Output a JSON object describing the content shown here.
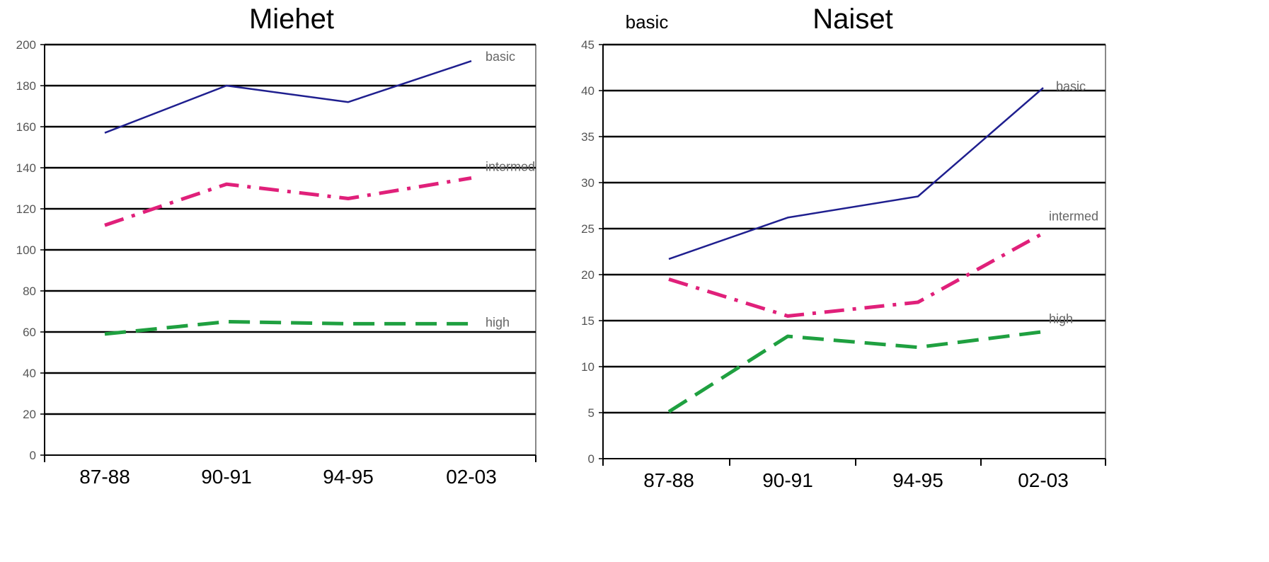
{
  "chart_data": [
    {
      "type": "line",
      "title": "Miehet",
      "note": "",
      "categories": [
        "87-88",
        "90-91",
        "94-95",
        "02-03"
      ],
      "ylim": [
        0,
        200
      ],
      "yticks": [
        0,
        20,
        40,
        60,
        80,
        100,
        120,
        140,
        160,
        180,
        200
      ],
      "grid": true,
      "series": [
        {
          "name": "basic",
          "values": [
            157,
            180,
            172,
            192
          ],
          "color": "#1f1f8f",
          "style": "solid"
        },
        {
          "name": "intermed",
          "values": [
            112,
            132,
            125,
            135
          ],
          "color": "#e0207a",
          "style": "dashdot"
        },
        {
          "name": "high",
          "values": [
            59,
            65,
            64,
            64
          ],
          "color": "#1fa040",
          "style": "dashed"
        }
      ]
    },
    {
      "type": "line",
      "title": "Naiset",
      "note": "basic",
      "categories": [
        "87-88",
        "90-91",
        "94-95",
        "02-03"
      ],
      "ylim": [
        0,
        45
      ],
      "yticks": [
        0,
        5,
        10,
        15,
        20,
        25,
        30,
        35,
        40,
        45
      ],
      "grid": true,
      "series": [
        {
          "name": "basic",
          "values": [
            21.7,
            26.2,
            28.5,
            40.3
          ],
          "color": "#1f1f8f",
          "style": "solid"
        },
        {
          "name": "intermed",
          "values": [
            19.5,
            15.5,
            17.0,
            24.5
          ],
          "color": "#e0207a",
          "style": "dashdot"
        },
        {
          "name": "high",
          "values": [
            5.1,
            13.3,
            12.1,
            13.8
          ],
          "color": "#1fa040",
          "style": "dashed"
        }
      ]
    }
  ]
}
